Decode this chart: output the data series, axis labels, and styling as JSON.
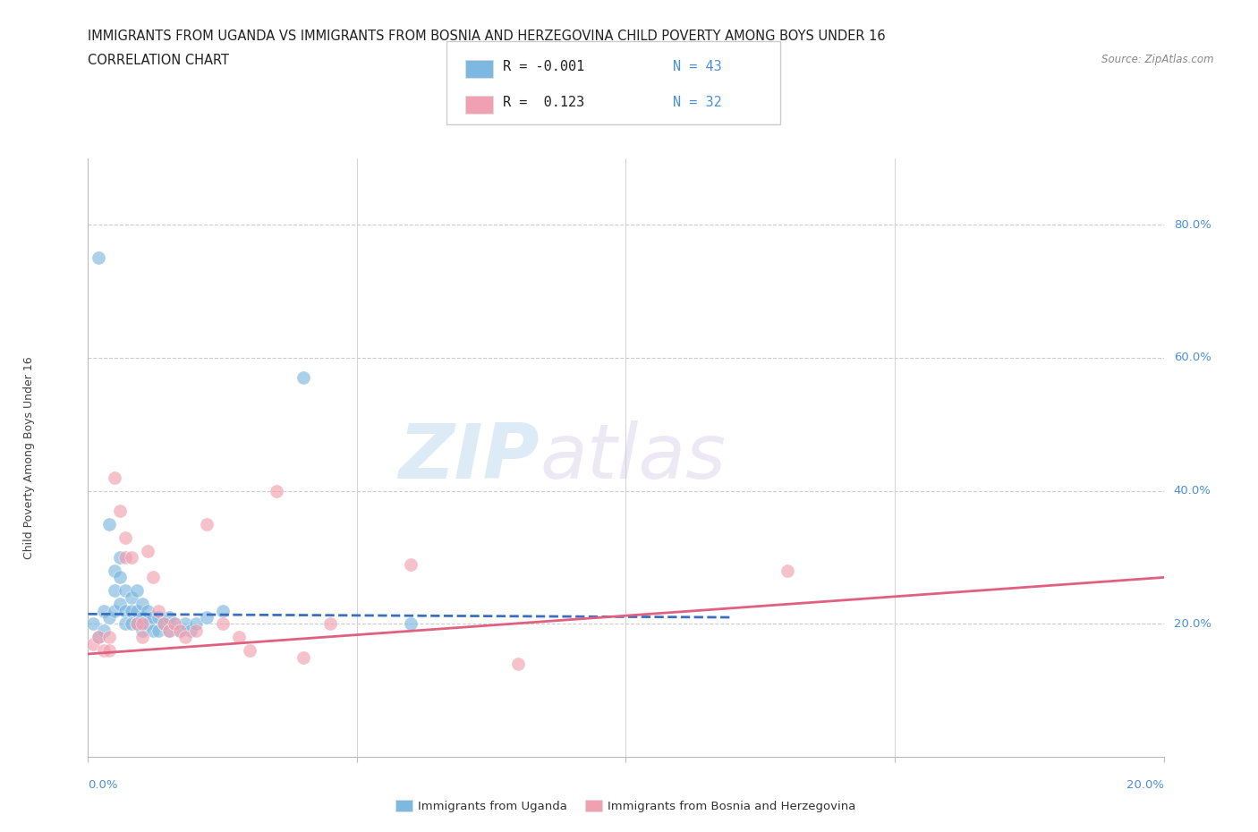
{
  "title_line1": "IMMIGRANTS FROM UGANDA VS IMMIGRANTS FROM BOSNIA AND HERZEGOVINA CHILD POVERTY AMONG BOYS UNDER 16",
  "title_line2": "CORRELATION CHART",
  "source_text": "Source: ZipAtlas.com",
  "ylabel": "Child Poverty Among Boys Under 16",
  "yaxis_labels": [
    "20.0%",
    "40.0%",
    "60.0%",
    "80.0%"
  ],
  "yaxis_values": [
    0.2,
    0.4,
    0.6,
    0.8
  ],
  "watermark_part1": "ZIP",
  "watermark_part2": "atlas",
  "color_uganda": "#7db8e0",
  "color_bosnia": "#f0a0b0",
  "color_uganda_line": "#3a6fbf",
  "color_bosnia_line": "#e06080",
  "color_axis_label": "#4a90d9",
  "xlim": [
    0.0,
    0.2
  ],
  "ylim": [
    0.0,
    0.9
  ],
  "scatter_uganda_x": [
    0.001,
    0.002,
    0.002,
    0.003,
    0.003,
    0.004,
    0.004,
    0.005,
    0.005,
    0.005,
    0.006,
    0.006,
    0.006,
    0.007,
    0.007,
    0.007,
    0.008,
    0.008,
    0.008,
    0.009,
    0.009,
    0.009,
    0.01,
    0.01,
    0.01,
    0.011,
    0.011,
    0.012,
    0.012,
    0.013,
    0.013,
    0.014,
    0.015,
    0.015,
    0.016,
    0.017,
    0.018,
    0.019,
    0.02,
    0.022,
    0.025,
    0.04,
    0.06
  ],
  "scatter_uganda_y": [
    0.2,
    0.75,
    0.18,
    0.22,
    0.19,
    0.35,
    0.21,
    0.28,
    0.25,
    0.22,
    0.3,
    0.27,
    0.23,
    0.25,
    0.22,
    0.2,
    0.24,
    0.22,
    0.2,
    0.25,
    0.22,
    0.2,
    0.23,
    0.21,
    0.19,
    0.22,
    0.2,
    0.21,
    0.19,
    0.21,
    0.19,
    0.2,
    0.21,
    0.19,
    0.2,
    0.19,
    0.2,
    0.19,
    0.2,
    0.21,
    0.22,
    0.57,
    0.2
  ],
  "scatter_bosnia_x": [
    0.001,
    0.002,
    0.003,
    0.004,
    0.004,
    0.005,
    0.006,
    0.007,
    0.007,
    0.008,
    0.009,
    0.01,
    0.01,
    0.011,
    0.012,
    0.013,
    0.014,
    0.015,
    0.016,
    0.017,
    0.018,
    0.02,
    0.022,
    0.025,
    0.028,
    0.03,
    0.035,
    0.04,
    0.045,
    0.06,
    0.08,
    0.13
  ],
  "scatter_bosnia_y": [
    0.17,
    0.18,
    0.16,
    0.18,
    0.16,
    0.42,
    0.37,
    0.33,
    0.3,
    0.3,
    0.2,
    0.2,
    0.18,
    0.31,
    0.27,
    0.22,
    0.2,
    0.19,
    0.2,
    0.19,
    0.18,
    0.19,
    0.35,
    0.2,
    0.18,
    0.16,
    0.4,
    0.15,
    0.2,
    0.29,
    0.14,
    0.28
  ],
  "uganda_trend_x": [
    0.0,
    0.12
  ],
  "uganda_trend_y": [
    0.215,
    0.21
  ],
  "bosnia_trend_x": [
    0.0,
    0.2
  ],
  "bosnia_trend_y": [
    0.155,
    0.27
  ],
  "background_color": "#ffffff",
  "grid_color": "#cccccc",
  "title_fontsize": 11,
  "label_fontsize": 9,
  "tick_fontsize": 9.5
}
